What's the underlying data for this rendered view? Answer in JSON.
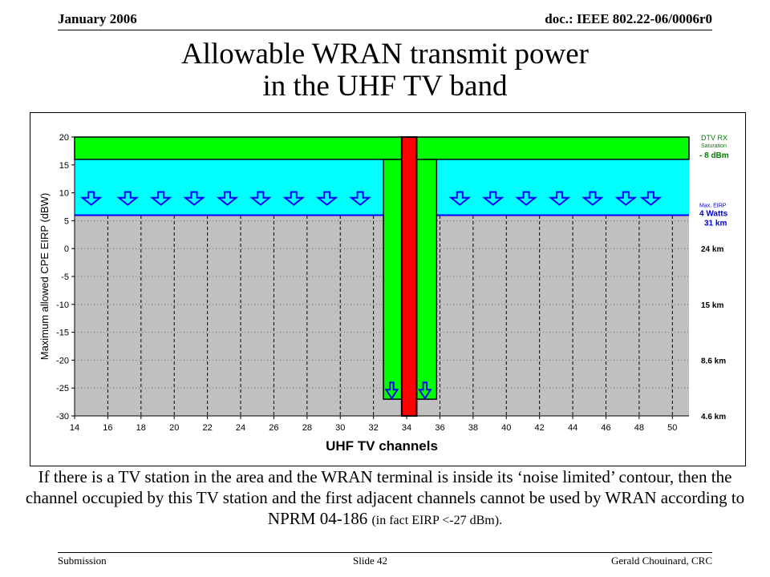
{
  "header": {
    "date": "January 2006",
    "doc": "doc.: IEEE 802.22-06/0006r0"
  },
  "title": {
    "line1": "Allowable WRAN transmit power",
    "line2": "in the UHF TV band"
  },
  "caption": {
    "main": "If there is a TV station in the area and the WRAN terminal is inside its ‘noise limited’ contour, then the channel occupied by this TV station and the first adjacent channels cannot be used by WRAN according to NPRM 04-186",
    "note": "(in fact EIRP <-27 dBm)."
  },
  "footer": {
    "left": "Submission",
    "center": "Slide 42",
    "right": "Gerald Chouinard, CRC"
  },
  "colors": {
    "plot_gray": "#c0c0c0",
    "allowed_cyan": "#00ffff",
    "saturation_green": "#00ff00",
    "tv_station_red": "#ff0000",
    "maxeirp_blue": "#0000ff",
    "text_blue": "#0000cc",
    "text_green": "#008000"
  },
  "chart_data": {
    "type": "bar",
    "xlabel": "UHF TV channels",
    "ylabel": "Maximum allowed CPE EIRP (dBW)",
    "xlim": [
      14,
      51
    ],
    "ylim": [
      -30,
      20
    ],
    "xticks": [
      "14",
      "16",
      "18",
      "20",
      "22",
      "24",
      "26",
      "28",
      "30",
      "32",
      "34",
      "36",
      "38",
      "40",
      "42",
      "44",
      "46",
      "48",
      "50"
    ],
    "yticks": [
      "20",
      "15",
      "10",
      "5",
      "0",
      "-5",
      "-10",
      "-15",
      "-20",
      "-25",
      "-30"
    ],
    "grid": true,
    "dtv_saturation_level": {
      "from": 16,
      "to": 20,
      "labels": [
        "DTV RX",
        "Saturation",
        "- 8 dBm"
      ]
    },
    "max_eirp_level": {
      "value": 6,
      "labels": [
        "Max. EIRP",
        "4 Watts",
        "31 km"
      ]
    },
    "allowed_power_band": {
      "from": 6,
      "to": 16
    },
    "adjacent_channel_bars": [
      {
        "x_start": 32.6,
        "x_end": 35.8,
        "top": 16,
        "bottom": -27
      }
    ],
    "occupied_channel": {
      "x_start": 33.7,
      "x_end": 34.6,
      "top": 20,
      "bottom": -30
    },
    "down_arrows_x": [
      15,
      17.2,
      19.2,
      21.2,
      23.2,
      25.2,
      27.2,
      29.2,
      31.2,
      37.2,
      39.2,
      41.2,
      43.2,
      45.2,
      47.2,
      48.7
    ],
    "adjacent_arrows_x": [
      33.1,
      35.1
    ],
    "distance_labels": [
      {
        "y": 0,
        "label": "24 km"
      },
      {
        "y": -10,
        "label": "15 km"
      },
      {
        "y": -20,
        "label": "8.6 km"
      },
      {
        "y": -30,
        "label": "4.6 km"
      }
    ]
  }
}
